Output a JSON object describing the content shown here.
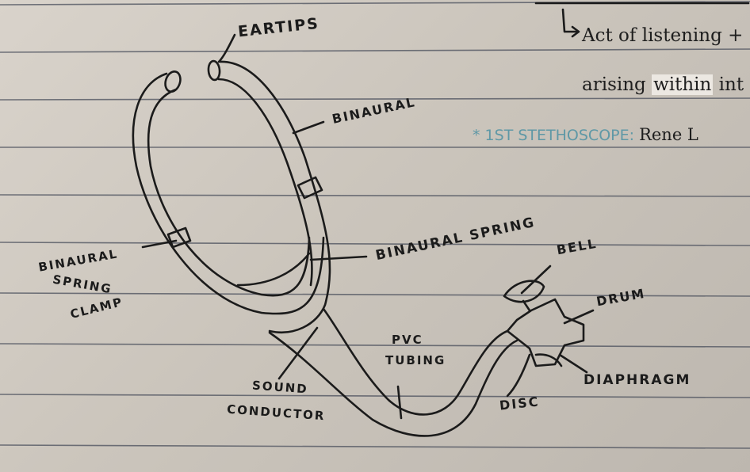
{
  "notes": {
    "line1": "Act of listening +",
    "line2_start": "arising",
    "line2_highlight": "within",
    "line2_end": "int",
    "line3_marker": "*",
    "line3_label": "1ST STETHOSCOPE:",
    "line3_value": "Rene L"
  },
  "labels": {
    "eartips": "EARTIPS",
    "binaural": "BINAURAL",
    "binaural_spring": "BINAURAL SPRING",
    "bell": "BELL",
    "drum": "DRUM",
    "diaphragm": "DIAPHRAGM",
    "disc": "DISC",
    "pvc_tubing_1": "PVC",
    "pvc_tubing_2": "TUBING",
    "sound_conductor_1": "SOUND",
    "sound_conductor_2": "CONDUCTOR",
    "binaural_spring_clamp_1": "BINAURAL",
    "binaural_spring_clamp_2": "SPRING",
    "binaural_spring_clamp_3": "CLAMP"
  },
  "colors": {
    "paper": "#cfc9c0",
    "rule_line": "#4a4f5c",
    "ink": "#1b1b1b",
    "accent_ink": "#5f98a6"
  }
}
